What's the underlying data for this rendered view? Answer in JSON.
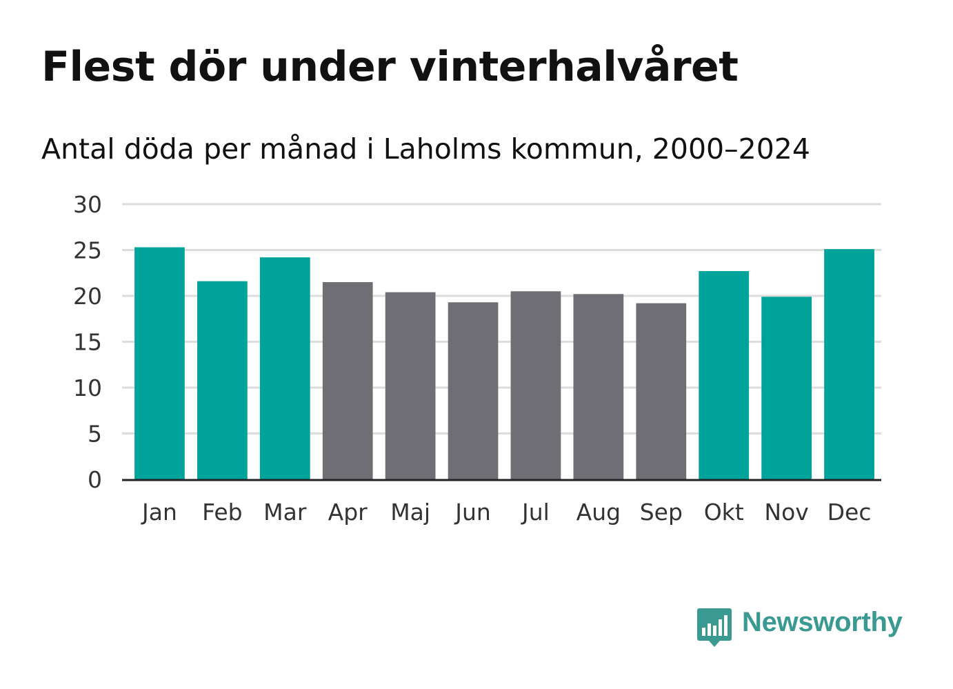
{
  "header": {
    "title": "Flest dör under vinterhalvåret",
    "subtitle": "Antal döda per månad i Laholms kommun, 2000–2024"
  },
  "branding": {
    "logo_text": "Newsworthy",
    "logo_icon": "bar-chart-speech-bubble-icon",
    "logo_color": "#3a9a92"
  },
  "colors": {
    "winter": "#00a39a",
    "summer": "#6f6e74",
    "grid": "#dddddd",
    "axis": "#222222"
  },
  "chart_data": {
    "type": "bar",
    "title": "Flest dör under vinterhalvåret",
    "subtitle": "Antal döda per månad i Laholms kommun, 2000–2024",
    "xlabel": "",
    "ylabel": "",
    "ylim": [
      0,
      30
    ],
    "yticks": [
      0,
      5,
      10,
      15,
      20,
      25,
      30
    ],
    "grid": true,
    "categories": [
      "Jan",
      "Feb",
      "Mar",
      "Apr",
      "Maj",
      "Jun",
      "Jul",
      "Aug",
      "Sep",
      "Okt",
      "Nov",
      "Dec"
    ],
    "values": [
      25.3,
      21.6,
      24.2,
      21.5,
      20.4,
      19.3,
      20.5,
      20.2,
      19.2,
      22.7,
      19.9,
      25.1
    ],
    "groups": [
      "winter",
      "winter",
      "winter",
      "summer",
      "summer",
      "summer",
      "summer",
      "summer",
      "summer",
      "winter",
      "winter",
      "winter"
    ]
  }
}
